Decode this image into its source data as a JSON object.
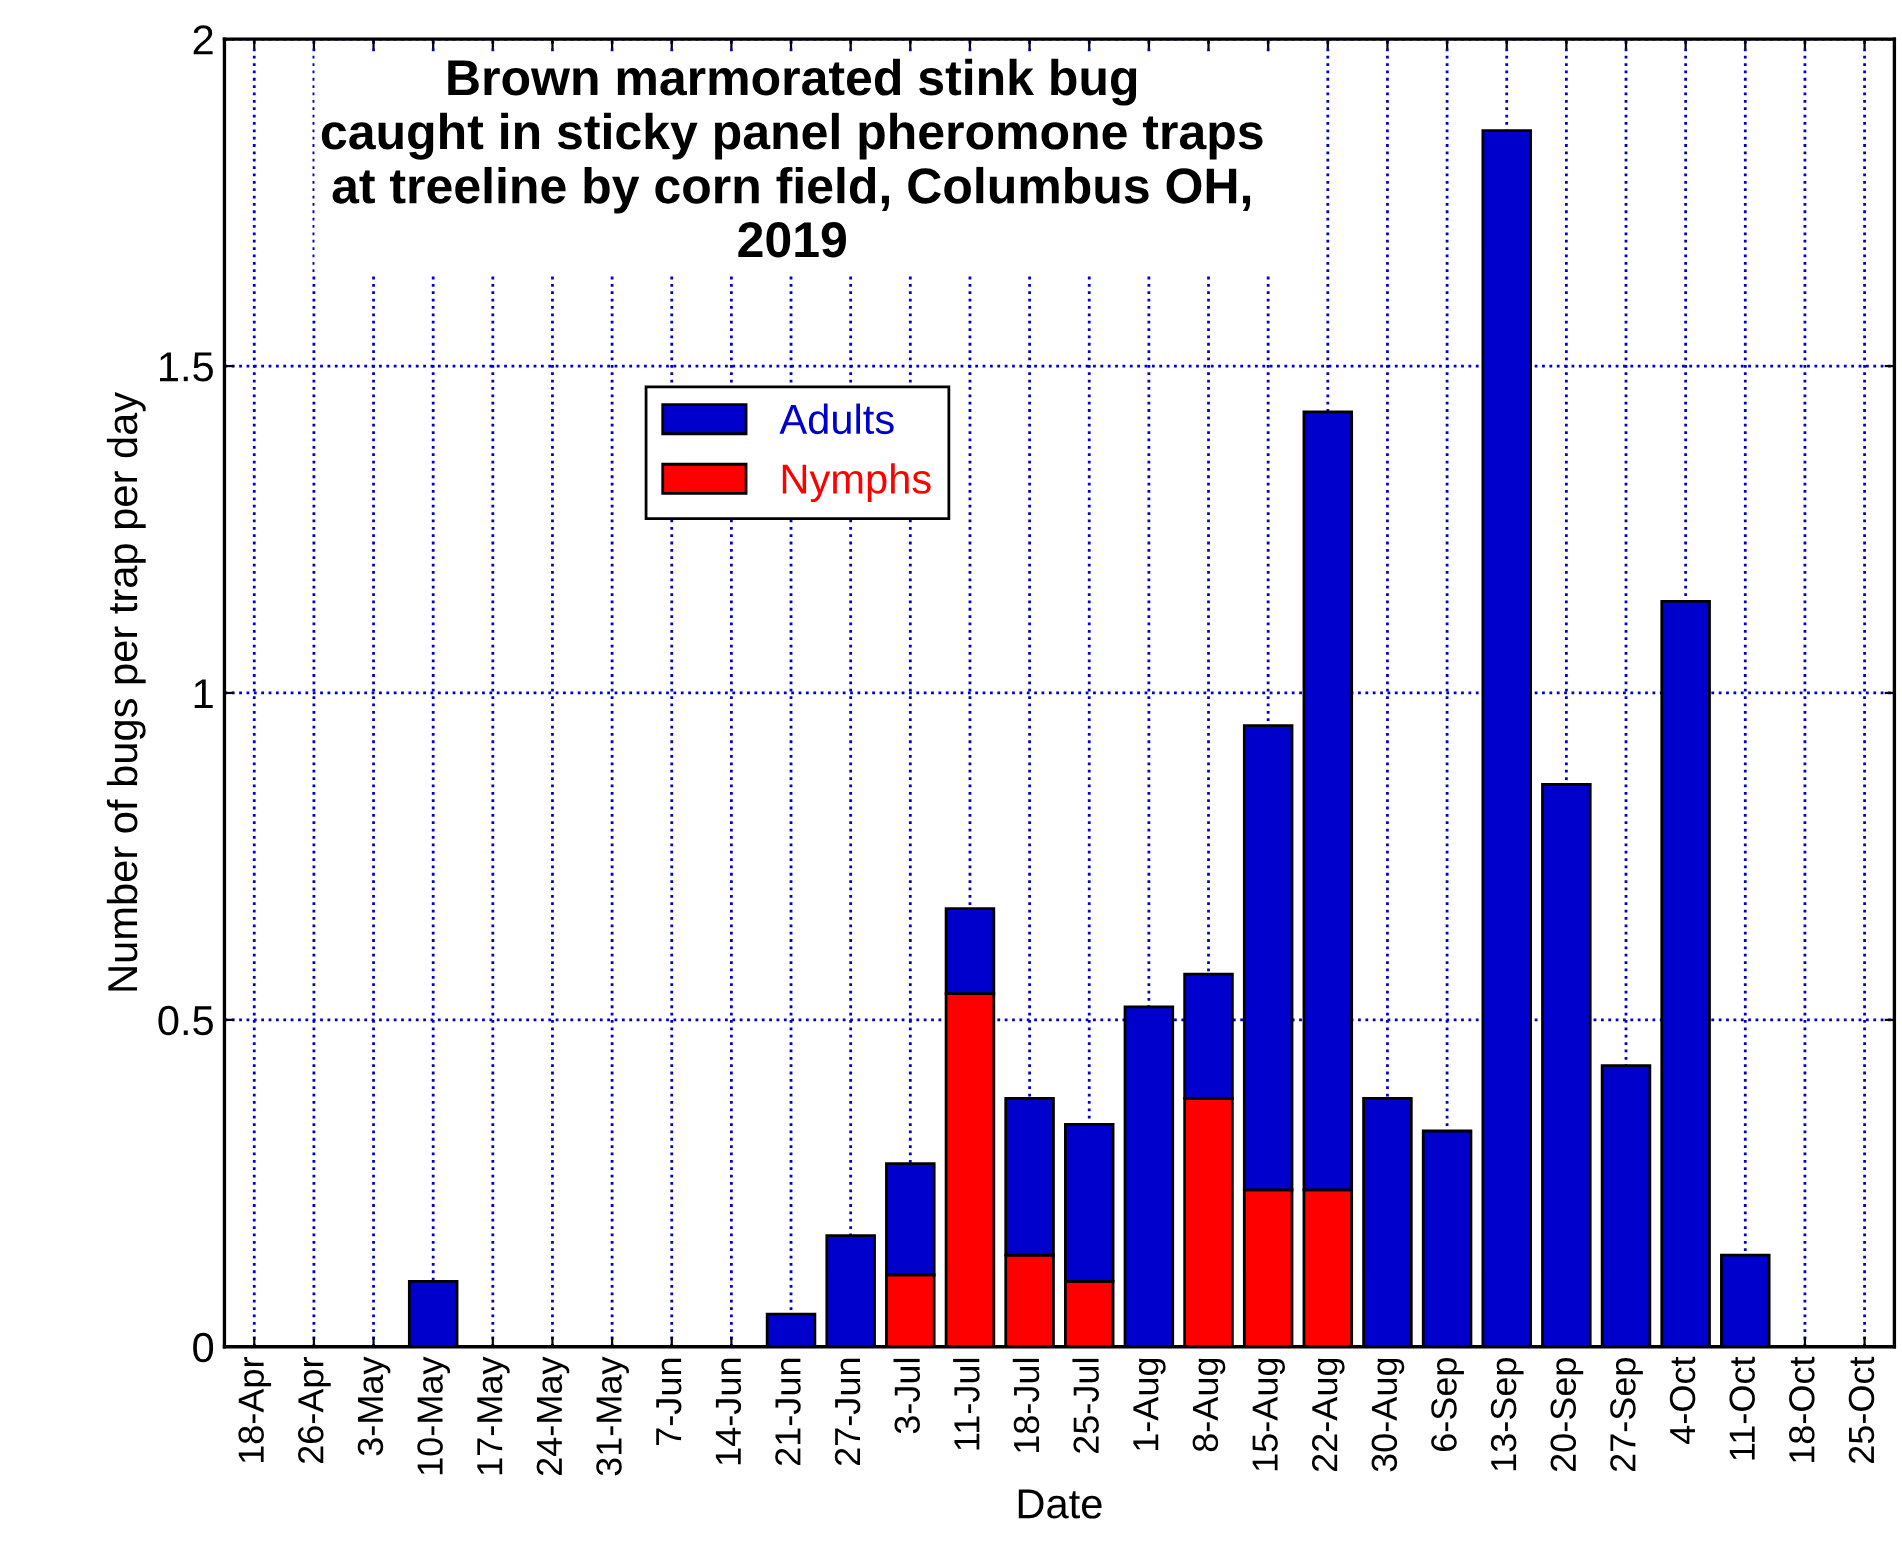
{
  "chart_data": {
    "type": "bar",
    "title": "Brown marmorated stink bug\ncaught in sticky panel pheromone traps\nat treeline by corn field, Columbus OH,\n2019",
    "xlabel": "Date",
    "ylabel": "Number of bugs per trap per day",
    "categories": [
      "18-Apr",
      "26-Apr",
      "3-May",
      "10-May",
      "17-May",
      "24-May",
      "31-May",
      "7-Jun",
      "14-Jun",
      "21-Jun",
      "27-Jun",
      "3-Jul",
      "11-Jul",
      "18-Jul",
      "25-Jul",
      "1-Aug",
      "8-Aug",
      "15-Aug",
      "22-Aug",
      "30-Aug",
      "6-Sep",
      "13-Sep",
      "20-Sep",
      "27-Sep",
      "4-Oct",
      "11-Oct",
      "18-Oct",
      "25-Oct"
    ],
    "stacked": true,
    "series": [
      {
        "name": "Nymphs",
        "color": "#ff0000",
        "values": [
          0,
          0,
          0,
          0,
          0,
          0,
          0,
          0,
          0,
          0,
          0,
          0.11,
          0.54,
          0.14,
          0.1,
          0,
          0.38,
          0.24,
          0.24,
          0,
          0,
          0,
          0,
          0,
          0,
          0,
          0,
          0
        ]
      },
      {
        "name": "Adults",
        "color": "#0000cc",
        "values": [
          0,
          0,
          0,
          0.1,
          0,
          0,
          0,
          0,
          0,
          0.05,
          0.17,
          0.17,
          0.13,
          0.24,
          0.24,
          0.52,
          0.19,
          0.71,
          1.19,
          0.38,
          0.33,
          1.86,
          0.86,
          0.43,
          1.14,
          0.14,
          0,
          0
        ]
      }
    ],
    "ylim": [
      0,
      2
    ],
    "yticks": [
      0,
      0.5,
      1,
      1.5,
      2
    ],
    "grid": true,
    "legend": "top left"
  }
}
